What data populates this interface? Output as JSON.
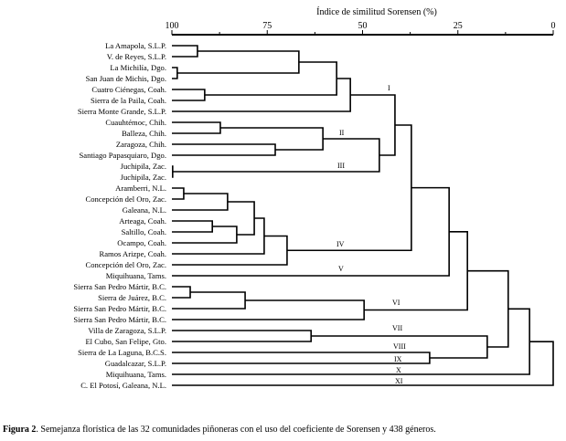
{
  "axis": {
    "title": "Índice de similitud Sorensen (%)",
    "ticks": [
      "100",
      "75",
      "50",
      "25",
      "0"
    ],
    "tick_values": [
      100,
      75,
      50,
      25,
      0
    ],
    "minor_tick_values": [
      87.5,
      62.5,
      37.5,
      12.5
    ],
    "range": [
      100,
      0
    ]
  },
  "leaves": [
    "La Amapola, S.L.P.",
    "V. de Reyes, S.L.P.",
    "La Michilía, Dgo.",
    "San Juan de Michis, Dgo.",
    "Cuatro Ciénegas, Coah.",
    "Sierra de la Paila, Coah.",
    "Sierra Monte Grande, S.L.P.",
    "Cuauhtémoc, Chih.",
    "Balleza, Chih.",
    "Zaragoza, Chih.",
    "Santiago Papasquiaro, Dgo.",
    "Juchipila, Zac.",
    "Juchipila, Zac.",
    "Aramberri, N.L.",
    "Concepción del Oro, Zac.",
    "Galeana, N.L.",
    "Arteaga, Coah.",
    "Saltillo, Coah.",
    "Ocampo, Coah.",
    "Ramos Arizpe, Coah.",
    "Concepción del Oro, Zac.",
    "Miquihuana, Tams.",
    "Sierra San Pedro Mártir, B.C.",
    "Sierra de Juárez, B.C.",
    "Sierra San Pedro Mártir, B.C.",
    "Sierra San Pedro Mártir, B.C.",
    "Villa de Zaragoza, S.L.P.",
    "El Cubo, San Felipe, Gto.",
    "Sierra de La Laguna, B.C.S.",
    "Guadalcazar, S.L.P.",
    "Miquihuana, Tams.",
    "C. El Potosí, Galeana, N.L."
  ],
  "merges": [
    [
      0,
      1,
      93.3
    ],
    [
      2,
      3,
      98.6
    ],
    [
      32,
      33,
      66.7
    ],
    [
      4,
      5,
      91.4
    ],
    [
      34,
      35,
      56.8
    ],
    [
      36,
      6,
      53.2
    ],
    [
      7,
      8,
      87.3
    ],
    [
      9,
      10,
      72.9
    ],
    [
      38,
      39,
      60.4
    ],
    [
      11,
      12,
      99.8
    ],
    [
      40,
      41,
      45.6
    ],
    [
      37,
      42,
      41.5
    ],
    [
      13,
      14,
      96.9
    ],
    [
      44,
      15,
      85.4
    ],
    [
      16,
      17,
      89.4
    ],
    [
      46,
      18,
      83.0
    ],
    [
      45,
      47,
      78.4
    ],
    [
      48,
      19,
      75.8
    ],
    [
      49,
      20,
      69.8
    ],
    [
      43,
      50,
      37.2
    ],
    [
      51,
      21,
      27.3
    ],
    [
      22,
      23,
      95.2
    ],
    [
      53,
      24,
      80.8
    ],
    [
      54,
      25,
      49.6
    ],
    [
      52,
      55,
      22.5
    ],
    [
      26,
      27,
      63.5
    ],
    [
      28,
      29,
      32.4
    ],
    [
      57,
      58,
      17.3
    ],
    [
      56,
      59,
      11.8
    ],
    [
      60,
      30,
      6.2
    ],
    [
      61,
      31,
      0.0
    ]
  ],
  "groups": [
    "I",
    "II",
    "III",
    "IV",
    "V",
    "VI",
    "VII",
    "VIII",
    "IX",
    "X",
    "XI"
  ],
  "caption": {
    "label": "Figura 2",
    "text": ". Semejanza florística de las 32 comunidades piñoneras con el uso del coeficiente de Sorensen y 438 géneros."
  }
}
